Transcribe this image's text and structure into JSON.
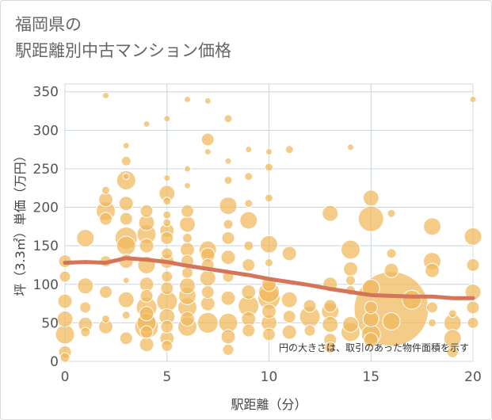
{
  "title_line1": "福岡県の",
  "title_line2": "駅距離別中古マンション価格",
  "colors": {
    "bubble": "#f0b95a",
    "bubble_stroke": "#ffffff",
    "trend": "#d4755a",
    "grid": "#c8d4de",
    "frame": "#cfd8e0"
  },
  "chart_data": {
    "type": "scatter",
    "title": "駅距離別中古マンション価格",
    "xlabel": "駅距離（分）",
    "ylabel": "坪（3.3㎡）単価（万円）",
    "xlim": [
      0,
      20
    ],
    "ylim": [
      0,
      360
    ],
    "x_ticks": [
      0,
      5,
      10,
      15,
      20
    ],
    "y_ticks": [
      0,
      50,
      100,
      150,
      200,
      250,
      300,
      350
    ],
    "note": "円の大きさは、取引のあった物件面積を示す",
    "trend_line": {
      "x": [
        0,
        1,
        2,
        3,
        4,
        5,
        6,
        7,
        8,
        9,
        10,
        11,
        12,
        13,
        14,
        15,
        16,
        17,
        18,
        19,
        20
      ],
      "y": [
        128,
        129,
        128,
        134,
        132,
        129,
        124,
        120,
        116,
        112,
        107,
        103,
        99,
        94,
        90,
        86,
        85,
        84,
        84,
        82,
        82
      ]
    },
    "points": [
      {
        "x": 0,
        "y": 12,
        "s": 8
      },
      {
        "x": 0,
        "y": 35,
        "s": 12
      },
      {
        "x": 0,
        "y": 55,
        "s": 10
      },
      {
        "x": 0,
        "y": 78,
        "s": 9
      },
      {
        "x": 0,
        "y": 110,
        "s": 7
      },
      {
        "x": 0,
        "y": 130,
        "s": 8
      },
      {
        "x": 0,
        "y": 5,
        "s": 6
      },
      {
        "x": 1,
        "y": 48,
        "s": 9
      },
      {
        "x": 1,
        "y": 70,
        "s": 7
      },
      {
        "x": 1,
        "y": 98,
        "s": 10
      },
      {
        "x": 1,
        "y": 160,
        "s": 11
      },
      {
        "x": 1,
        "y": 38,
        "s": 6
      },
      {
        "x": 2,
        "y": 345,
        "s": 4
      },
      {
        "x": 2,
        "y": 222,
        "s": 5
      },
      {
        "x": 2,
        "y": 210,
        "s": 9
      },
      {
        "x": 2,
        "y": 195,
        "s": 12
      },
      {
        "x": 2,
        "y": 185,
        "s": 8
      },
      {
        "x": 2,
        "y": 130,
        "s": 7
      },
      {
        "x": 2,
        "y": 90,
        "s": 8
      },
      {
        "x": 2,
        "y": 55,
        "s": 5
      },
      {
        "x": 2,
        "y": 45,
        "s": 9
      },
      {
        "x": 3,
        "y": 280,
        "s": 4
      },
      {
        "x": 3,
        "y": 260,
        "s": 6
      },
      {
        "x": 3,
        "y": 235,
        "s": 12
      },
      {
        "x": 3,
        "y": 240,
        "s": 4
      },
      {
        "x": 3,
        "y": 205,
        "s": 9
      },
      {
        "x": 3,
        "y": 185,
        "s": 8
      },
      {
        "x": 3,
        "y": 160,
        "s": 14
      },
      {
        "x": 3,
        "y": 150,
        "s": 12
      },
      {
        "x": 3,
        "y": 130,
        "s": 9
      },
      {
        "x": 3,
        "y": 105,
        "s": 4
      },
      {
        "x": 3,
        "y": 80,
        "s": 10
      },
      {
        "x": 3,
        "y": 60,
        "s": 5
      },
      {
        "x": 3,
        "y": 30,
        "s": 8
      },
      {
        "x": 4,
        "y": 308,
        "s": 4
      },
      {
        "x": 4,
        "y": 195,
        "s": 8
      },
      {
        "x": 4,
        "y": 180,
        "s": 10
      },
      {
        "x": 4,
        "y": 165,
        "s": 12
      },
      {
        "x": 4,
        "y": 150,
        "s": 9
      },
      {
        "x": 4,
        "y": 125,
        "s": 11
      },
      {
        "x": 4,
        "y": 100,
        "s": 9
      },
      {
        "x": 4,
        "y": 85,
        "s": 8
      },
      {
        "x": 4,
        "y": 70,
        "s": 13
      },
      {
        "x": 4,
        "y": 62,
        "s": 9
      },
      {
        "x": 4,
        "y": 50,
        "s": 12
      },
      {
        "x": 4,
        "y": 45,
        "s": 15
      },
      {
        "x": 4,
        "y": 38,
        "s": 8
      },
      {
        "x": 4,
        "y": 22,
        "s": 9
      },
      {
        "x": 5,
        "y": 315,
        "s": 4
      },
      {
        "x": 5,
        "y": 238,
        "s": 4
      },
      {
        "x": 5,
        "y": 218,
        "s": 10
      },
      {
        "x": 5,
        "y": 208,
        "s": 5
      },
      {
        "x": 5,
        "y": 190,
        "s": 5
      },
      {
        "x": 5,
        "y": 180,
        "s": 5
      },
      {
        "x": 5,
        "y": 170,
        "s": 9
      },
      {
        "x": 5,
        "y": 160,
        "s": 8
      },
      {
        "x": 5,
        "y": 140,
        "s": 7
      },
      {
        "x": 5,
        "y": 130,
        "s": 9
      },
      {
        "x": 5,
        "y": 110,
        "s": 7
      },
      {
        "x": 5,
        "y": 95,
        "s": 8
      },
      {
        "x": 5,
        "y": 78,
        "s": 13
      },
      {
        "x": 5,
        "y": 58,
        "s": 10
      },
      {
        "x": 5,
        "y": 45,
        "s": 8
      },
      {
        "x": 5,
        "y": 30,
        "s": 9
      },
      {
        "x": 5,
        "y": 20,
        "s": 7
      },
      {
        "x": 6,
        "y": 340,
        "s": 4
      },
      {
        "x": 6,
        "y": 250,
        "s": 4
      },
      {
        "x": 6,
        "y": 228,
        "s": 4
      },
      {
        "x": 6,
        "y": 195,
        "s": 8
      },
      {
        "x": 6,
        "y": 178,
        "s": 10
      },
      {
        "x": 6,
        "y": 160,
        "s": 6
      },
      {
        "x": 6,
        "y": 145,
        "s": 9
      },
      {
        "x": 6,
        "y": 130,
        "s": 8
      },
      {
        "x": 6,
        "y": 115,
        "s": 7
      },
      {
        "x": 6,
        "y": 98,
        "s": 10
      },
      {
        "x": 6,
        "y": 85,
        "s": 11
      },
      {
        "x": 6,
        "y": 70,
        "s": 12
      },
      {
        "x": 6,
        "y": 55,
        "s": 9
      },
      {
        "x": 6,
        "y": 45,
        "s": 12
      },
      {
        "x": 7,
        "y": 338,
        "s": 4
      },
      {
        "x": 7,
        "y": 288,
        "s": 8
      },
      {
        "x": 7,
        "y": 272,
        "s": 4
      },
      {
        "x": 7,
        "y": 145,
        "s": 11
      },
      {
        "x": 7,
        "y": 138,
        "s": 9
      },
      {
        "x": 7,
        "y": 125,
        "s": 8
      },
      {
        "x": 7,
        "y": 108,
        "s": 10
      },
      {
        "x": 7,
        "y": 90,
        "s": 8
      },
      {
        "x": 7,
        "y": 75,
        "s": 9
      },
      {
        "x": 7,
        "y": 50,
        "s": 13
      },
      {
        "x": 8,
        "y": 315,
        "s": 5
      },
      {
        "x": 8,
        "y": 260,
        "s": 4
      },
      {
        "x": 8,
        "y": 235,
        "s": 5
      },
      {
        "x": 8,
        "y": 202,
        "s": 11
      },
      {
        "x": 8,
        "y": 178,
        "s": 6
      },
      {
        "x": 8,
        "y": 160,
        "s": 8
      },
      {
        "x": 8,
        "y": 135,
        "s": 9
      },
      {
        "x": 8,
        "y": 110,
        "s": 7
      },
      {
        "x": 8,
        "y": 82,
        "s": 9
      },
      {
        "x": 8,
        "y": 50,
        "s": 12
      },
      {
        "x": 8,
        "y": 32,
        "s": 9
      },
      {
        "x": 8,
        "y": 15,
        "s": 7
      },
      {
        "x": 9,
        "y": 275,
        "s": 4
      },
      {
        "x": 9,
        "y": 240,
        "s": 5
      },
      {
        "x": 9,
        "y": 205,
        "s": 5
      },
      {
        "x": 9,
        "y": 183,
        "s": 11
      },
      {
        "x": 9,
        "y": 150,
        "s": 6
      },
      {
        "x": 9,
        "y": 125,
        "s": 8
      },
      {
        "x": 9,
        "y": 90,
        "s": 9
      },
      {
        "x": 9,
        "y": 72,
        "s": 13
      },
      {
        "x": 9,
        "y": 55,
        "s": 9
      },
      {
        "x": 9,
        "y": 40,
        "s": 8
      },
      {
        "x": 10,
        "y": 272,
        "s": 4
      },
      {
        "x": 10,
        "y": 252,
        "s": 5
      },
      {
        "x": 10,
        "y": 212,
        "s": 5
      },
      {
        "x": 10,
        "y": 152,
        "s": 11
      },
      {
        "x": 10,
        "y": 128,
        "s": 5
      },
      {
        "x": 10,
        "y": 100,
        "s": 9
      },
      {
        "x": 10,
        "y": 90,
        "s": 13
      },
      {
        "x": 10,
        "y": 82,
        "s": 14
      },
      {
        "x": 10,
        "y": 65,
        "s": 9
      },
      {
        "x": 10,
        "y": 50,
        "s": 10
      },
      {
        "x": 10,
        "y": 35,
        "s": 8
      },
      {
        "x": 11,
        "y": 275,
        "s": 5
      },
      {
        "x": 11,
        "y": 140,
        "s": 9
      },
      {
        "x": 11,
        "y": 80,
        "s": 10
      },
      {
        "x": 11,
        "y": 58,
        "s": 8
      },
      {
        "x": 11,
        "y": 38,
        "s": 9
      },
      {
        "x": 12,
        "y": 72,
        "s": 8
      },
      {
        "x": 12,
        "y": 58,
        "s": 13
      },
      {
        "x": 12,
        "y": 40,
        "s": 7
      },
      {
        "x": 13,
        "y": 192,
        "s": 10
      },
      {
        "x": 13,
        "y": 100,
        "s": 9
      },
      {
        "x": 13,
        "y": 72,
        "s": 8
      },
      {
        "x": 13,
        "y": 65,
        "s": 11
      },
      {
        "x": 13,
        "y": 48,
        "s": 10
      },
      {
        "x": 13,
        "y": 28,
        "s": 8
      },
      {
        "x": 13,
        "y": 18,
        "s": 7
      },
      {
        "x": 14,
        "y": 278,
        "s": 4
      },
      {
        "x": 14,
        "y": 145,
        "s": 12
      },
      {
        "x": 14,
        "y": 120,
        "s": 9
      },
      {
        "x": 14,
        "y": 105,
        "s": 6
      },
      {
        "x": 14,
        "y": 92,
        "s": 6
      },
      {
        "x": 14,
        "y": 48,
        "s": 10
      },
      {
        "x": 14,
        "y": 38,
        "s": 12
      },
      {
        "x": 15,
        "y": 212,
        "s": 10
      },
      {
        "x": 15,
        "y": 185,
        "s": 16
      },
      {
        "x": 15,
        "y": 95,
        "s": 11
      },
      {
        "x": 15,
        "y": 70,
        "s": 8
      },
      {
        "x": 15,
        "y": 55,
        "s": 10
      },
      {
        "x": 15,
        "y": 35,
        "s": 12
      },
      {
        "x": 15,
        "y": 28,
        "s": 9
      },
      {
        "x": 16,
        "y": 192,
        "s": 5
      },
      {
        "x": 16,
        "y": 140,
        "s": 6
      },
      {
        "x": 16,
        "y": 118,
        "s": 9
      },
      {
        "x": 16,
        "y": 68,
        "s": 47
      },
      {
        "x": 16,
        "y": 52,
        "s": 11
      },
      {
        "x": 17,
        "y": 80,
        "s": 12
      },
      {
        "x": 18,
        "y": 175,
        "s": 11
      },
      {
        "x": 18,
        "y": 130,
        "s": 11
      },
      {
        "x": 18,
        "y": 118,
        "s": 9
      },
      {
        "x": 18,
        "y": 70,
        "s": 7
      },
      {
        "x": 18,
        "y": 50,
        "s": 5
      },
      {
        "x": 19,
        "y": 62,
        "s": 5
      },
      {
        "x": 19,
        "y": 50,
        "s": 11
      },
      {
        "x": 19,
        "y": 30,
        "s": 11
      },
      {
        "x": 19,
        "y": 12,
        "s": 7
      },
      {
        "x": 20,
        "y": 340,
        "s": 4
      },
      {
        "x": 20,
        "y": 162,
        "s": 11
      },
      {
        "x": 20,
        "y": 125,
        "s": 8
      },
      {
        "x": 20,
        "y": 90,
        "s": 10
      },
      {
        "x": 20,
        "y": 70,
        "s": 8
      },
      {
        "x": 20,
        "y": 50,
        "s": 7
      }
    ]
  }
}
